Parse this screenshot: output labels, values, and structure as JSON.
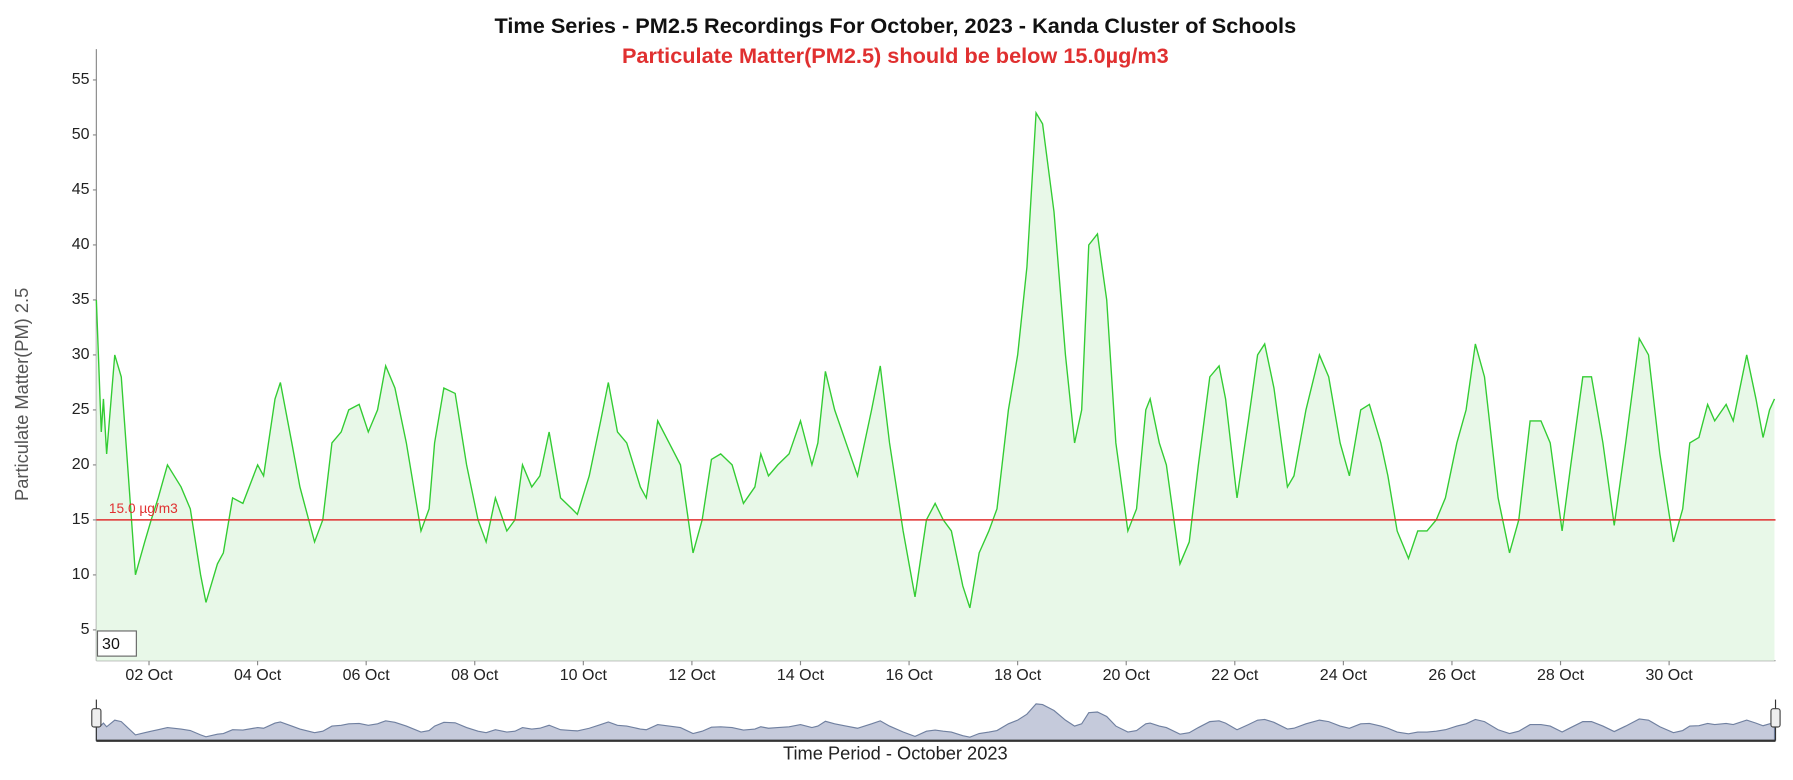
{
  "chart_data": {
    "type": "area",
    "title": "Time Series - PM2.5 Recordings For October, 2023 - Kanda Cluster of Schools",
    "subtitle": "Particulate Matter(PM2.5) should be below 15.0µg/m3",
    "y_label": "Particulate Matter(PM) 2.5",
    "x_label": "Time Period - October 2023",
    "zoom_box": "30",
    "color": "#33cc33",
    "fill": "#e8f8e8",
    "threshold": {
      "value": 15,
      "label": "15.0 µg/m3",
      "color": "#e03030"
    },
    "grid": false,
    "xlim": [
      1.03,
      31.96
    ],
    "ylim": [
      2.2,
      57.8
    ],
    "yticks": [
      5,
      10,
      15,
      20,
      25,
      30,
      35,
      40,
      45,
      50,
      55
    ],
    "xticks": [
      {
        "value": 2,
        "label": "02 Oct"
      },
      {
        "value": 4,
        "label": "04 Oct"
      },
      {
        "value": 6,
        "label": "06 Oct"
      },
      {
        "value": 8,
        "label": "08 Oct"
      },
      {
        "value": 10,
        "label": "10 Oct"
      },
      {
        "value": 12,
        "label": "12 Oct"
      },
      {
        "value": 14,
        "label": "14 Oct"
      },
      {
        "value": 16,
        "label": "16 Oct"
      },
      {
        "value": 18,
        "label": "18 Oct"
      },
      {
        "value": 20,
        "label": "20 Oct"
      },
      {
        "value": 22,
        "label": "22 Oct"
      },
      {
        "value": 24,
        "label": "24 Oct"
      },
      {
        "value": 26,
        "label": "26 Oct"
      },
      {
        "value": 28,
        "label": "28 Oct"
      },
      {
        "value": 30,
        "label": "30 Oct"
      }
    ],
    "x": [
      1.03,
      1.12,
      1.16,
      1.22,
      1.37,
      1.49,
      1.75,
      1.92,
      2.04,
      2.17,
      2.34,
      2.59,
      2.76,
      2.95,
      3.05,
      3.26,
      3.37,
      3.54,
      3.73,
      4.0,
      4.11,
      4.32,
      4.42,
      4.63,
      4.78,
      5.05,
      5.2,
      5.37,
      5.54,
      5.68,
      5.87,
      6.04,
      6.21,
      6.36,
      6.53,
      6.74,
      7.01,
      7.16,
      7.26,
      7.43,
      7.64,
      7.85,
      8.06,
      8.21,
      8.38,
      8.59,
      8.74,
      8.88,
      9.05,
      9.2,
      9.37,
      9.58,
      9.79,
      9.89,
      10.11,
      10.32,
      10.46,
      10.63,
      10.8,
      11.05,
      11.16,
      11.37,
      11.58,
      11.79,
      12.02,
      12.19,
      12.36,
      12.53,
      12.74,
      12.95,
      13.16,
      13.27,
      13.41,
      13.58,
      13.79,
      14.0,
      14.21,
      14.32,
      14.46,
      14.63,
      14.84,
      15.05,
      15.31,
      15.47,
      15.64,
      15.89,
      16.11,
      16.32,
      16.48,
      16.63,
      16.78,
      16.99,
      17.12,
      17.29,
      17.47,
      17.62,
      17.83,
      18.0,
      18.17,
      18.34,
      18.46,
      18.67,
      18.88,
      19.05,
      19.18,
      19.31,
      19.47,
      19.64,
      19.81,
      20.03,
      20.19,
      20.36,
      20.44,
      20.61,
      20.74,
      20.99,
      21.16,
      21.33,
      21.54,
      21.71,
      21.83,
      22.04,
      22.25,
      22.42,
      22.55,
      22.72,
      22.97,
      23.09,
      23.31,
      23.56,
      23.73,
      23.94,
      24.11,
      24.32,
      24.48,
      24.69,
      24.82,
      24.99,
      25.2,
      25.37,
      25.54,
      25.71,
      25.88,
      26.09,
      26.26,
      26.43,
      26.6,
      26.85,
      27.06,
      27.23,
      27.44,
      27.64,
      27.81,
      28.03,
      28.19,
      28.41,
      28.57,
      28.78,
      28.99,
      29.2,
      29.45,
      29.62,
      29.83,
      30.08,
      30.25,
      30.38,
      30.55,
      30.71,
      30.84,
      31.05,
      31.18,
      31.43,
      31.6,
      31.73,
      31.85,
      31.94
    ],
    "values": [
      35,
      23,
      26,
      21,
      30,
      28,
      10,
      13,
      15,
      17,
      20,
      18,
      16,
      10,
      7.5,
      11,
      12,
      17,
      16.5,
      20,
      19,
      26,
      27.5,
      22,
      18,
      13,
      15,
      22,
      23,
      25,
      25.5,
      23,
      25,
      29,
      27,
      22,
      14,
      16,
      22,
      27,
      26.5,
      20,
      15,
      13,
      17,
      14,
      15,
      20,
      18,
      19,
      23,
      17,
      16,
      15.5,
      19,
      24,
      27.5,
      23,
      22,
      18,
      17,
      24,
      22,
      20,
      12,
      15,
      20.5,
      21,
      20,
      16.5,
      18,
      21,
      19,
      20,
      21,
      24,
      20,
      22,
      28.5,
      25,
      22,
      19,
      25,
      29,
      22,
      14,
      8,
      15,
      16.5,
      15,
      14,
      9,
      7,
      12,
      14,
      16,
      25,
      30,
      38,
      52,
      51,
      43,
      30,
      22,
      25,
      40,
      41,
      35,
      22,
      14,
      16,
      25,
      26,
      22,
      20,
      11,
      13,
      20,
      28,
      29,
      26,
      17,
      24,
      30,
      31,
      27,
      18,
      19,
      25,
      30,
      28,
      22,
      19,
      25,
      25.5,
      22,
      19,
      14,
      11.5,
      14,
      14,
      15,
      17,
      22,
      25,
      31,
      28,
      17,
      12,
      15,
      24,
      24,
      22,
      14,
      20,
      28,
      28,
      22,
      14.5,
      22,
      31.5,
      30,
      21,
      13,
      16,
      22,
      22.5,
      25.5,
      24,
      25.5,
      24,
      30,
      26,
      22.5,
      25,
      26
    ]
  }
}
